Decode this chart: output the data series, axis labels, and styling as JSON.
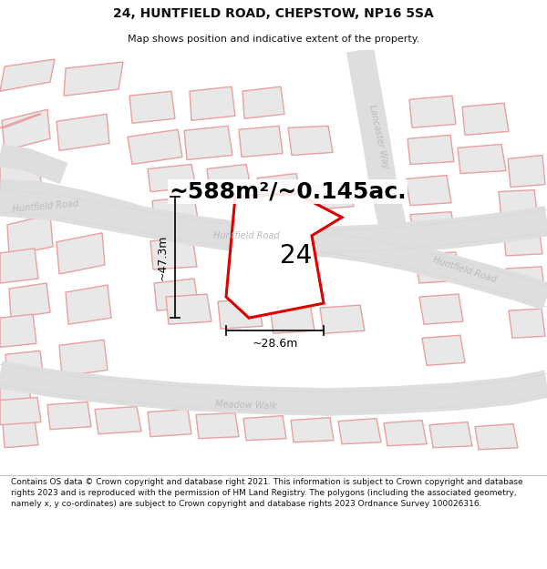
{
  "title_line1": "24, HUNTFIELD ROAD, CHEPSTOW, NP16 5SA",
  "title_line2": "Map shows position and indicative extent of the property.",
  "area_text": "~588m²/~0.145ac.",
  "label_24": "24",
  "dim_vertical": "~47.3m",
  "dim_horizontal": "~28.6m",
  "road_label_huntfield_top": "Huntfield Road",
  "road_label_huntfield_right": "Huntfield Road",
  "road_label_meadow": "Meadow Walk",
  "road_label_lancaster": "Lancaster Way",
  "road_label_huntfield_left": "Huntfield Road",
  "footer_text": "Contains OS data © Crown copyright and database right 2021. This information is subject to Crown copyright and database rights 2023 and is reproduced with the permission of HM Land Registry. The polygons (including the associated geometry, namely x, y co-ordinates) are subject to Crown copyright and database rights 2023 Ordnance Survey 100026316.",
  "bg_color": "#ffffff",
  "map_bg": "#ffffff",
  "plot_color_fill": "#ffffff",
  "plot_color_edge": "#dd0000",
  "building_fill": "#e8e8e8",
  "building_edge": "#e8a0a0",
  "road_fill": "#e0e0e0",
  "road_edge": "#cccccc",
  "dim_line_color": "#111111",
  "road_text_color": "#bbbbbb",
  "title_color": "#111111",
  "footer_color": "#111111",
  "title_fontsize": 10,
  "subtitle_fontsize": 8,
  "area_fontsize": 18,
  "label_fontsize": 20,
  "dim_fontsize": 9,
  "road_fontsize": 7,
  "footer_fontsize": 6.5
}
